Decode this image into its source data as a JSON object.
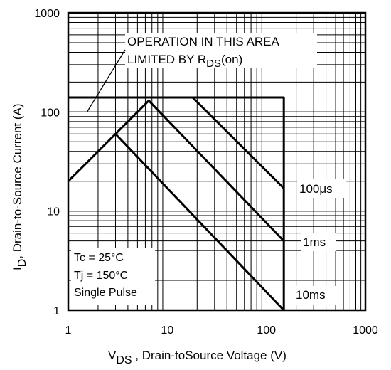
{
  "chart_data": {
    "type": "line",
    "x_scale": "log",
    "y_scale": "log",
    "xlim": [
      1,
      1000
    ],
    "ylim": [
      1,
      1000
    ],
    "grid": true,
    "x_ticks": [
      "1",
      "10",
      "100",
      "1000"
    ],
    "y_ticks": [
      "1",
      "10",
      "100",
      "1000"
    ],
    "xlabel": {
      "main": "V",
      "sub": "DS",
      "rest": " , Drain-toSource Voltage (V)"
    },
    "ylabel": {
      "main": "I",
      "sub": "D",
      "rest": ",  Drain-to-Source Current (A)"
    },
    "rds_annotation": {
      "line1": "OPERATION IN THIS AREA",
      "line2_pre": "LIMITED BY R",
      "line2_sub": "DS",
      "line2_post": "(on)"
    },
    "conditions": [
      "Tc = 25°C",
      "Tj = 150°C",
      "Single Pulse"
    ],
    "boundary": {
      "current_limit": 140,
      "voltage_limit": 150,
      "rds_on_line": [
        [
          1,
          20
        ],
        [
          6.5,
          130
        ]
      ]
    },
    "series": [
      {
        "name": "100μs",
        "x": [
          18,
          150
        ],
        "y": [
          140,
          17
        ]
      },
      {
        "name": "1ms",
        "x": [
          6.5,
          150
        ],
        "y": [
          130,
          5
        ]
      },
      {
        "name": "10ms",
        "x": [
          3,
          150
        ],
        "y": [
          60,
          1
        ]
      }
    ]
  }
}
